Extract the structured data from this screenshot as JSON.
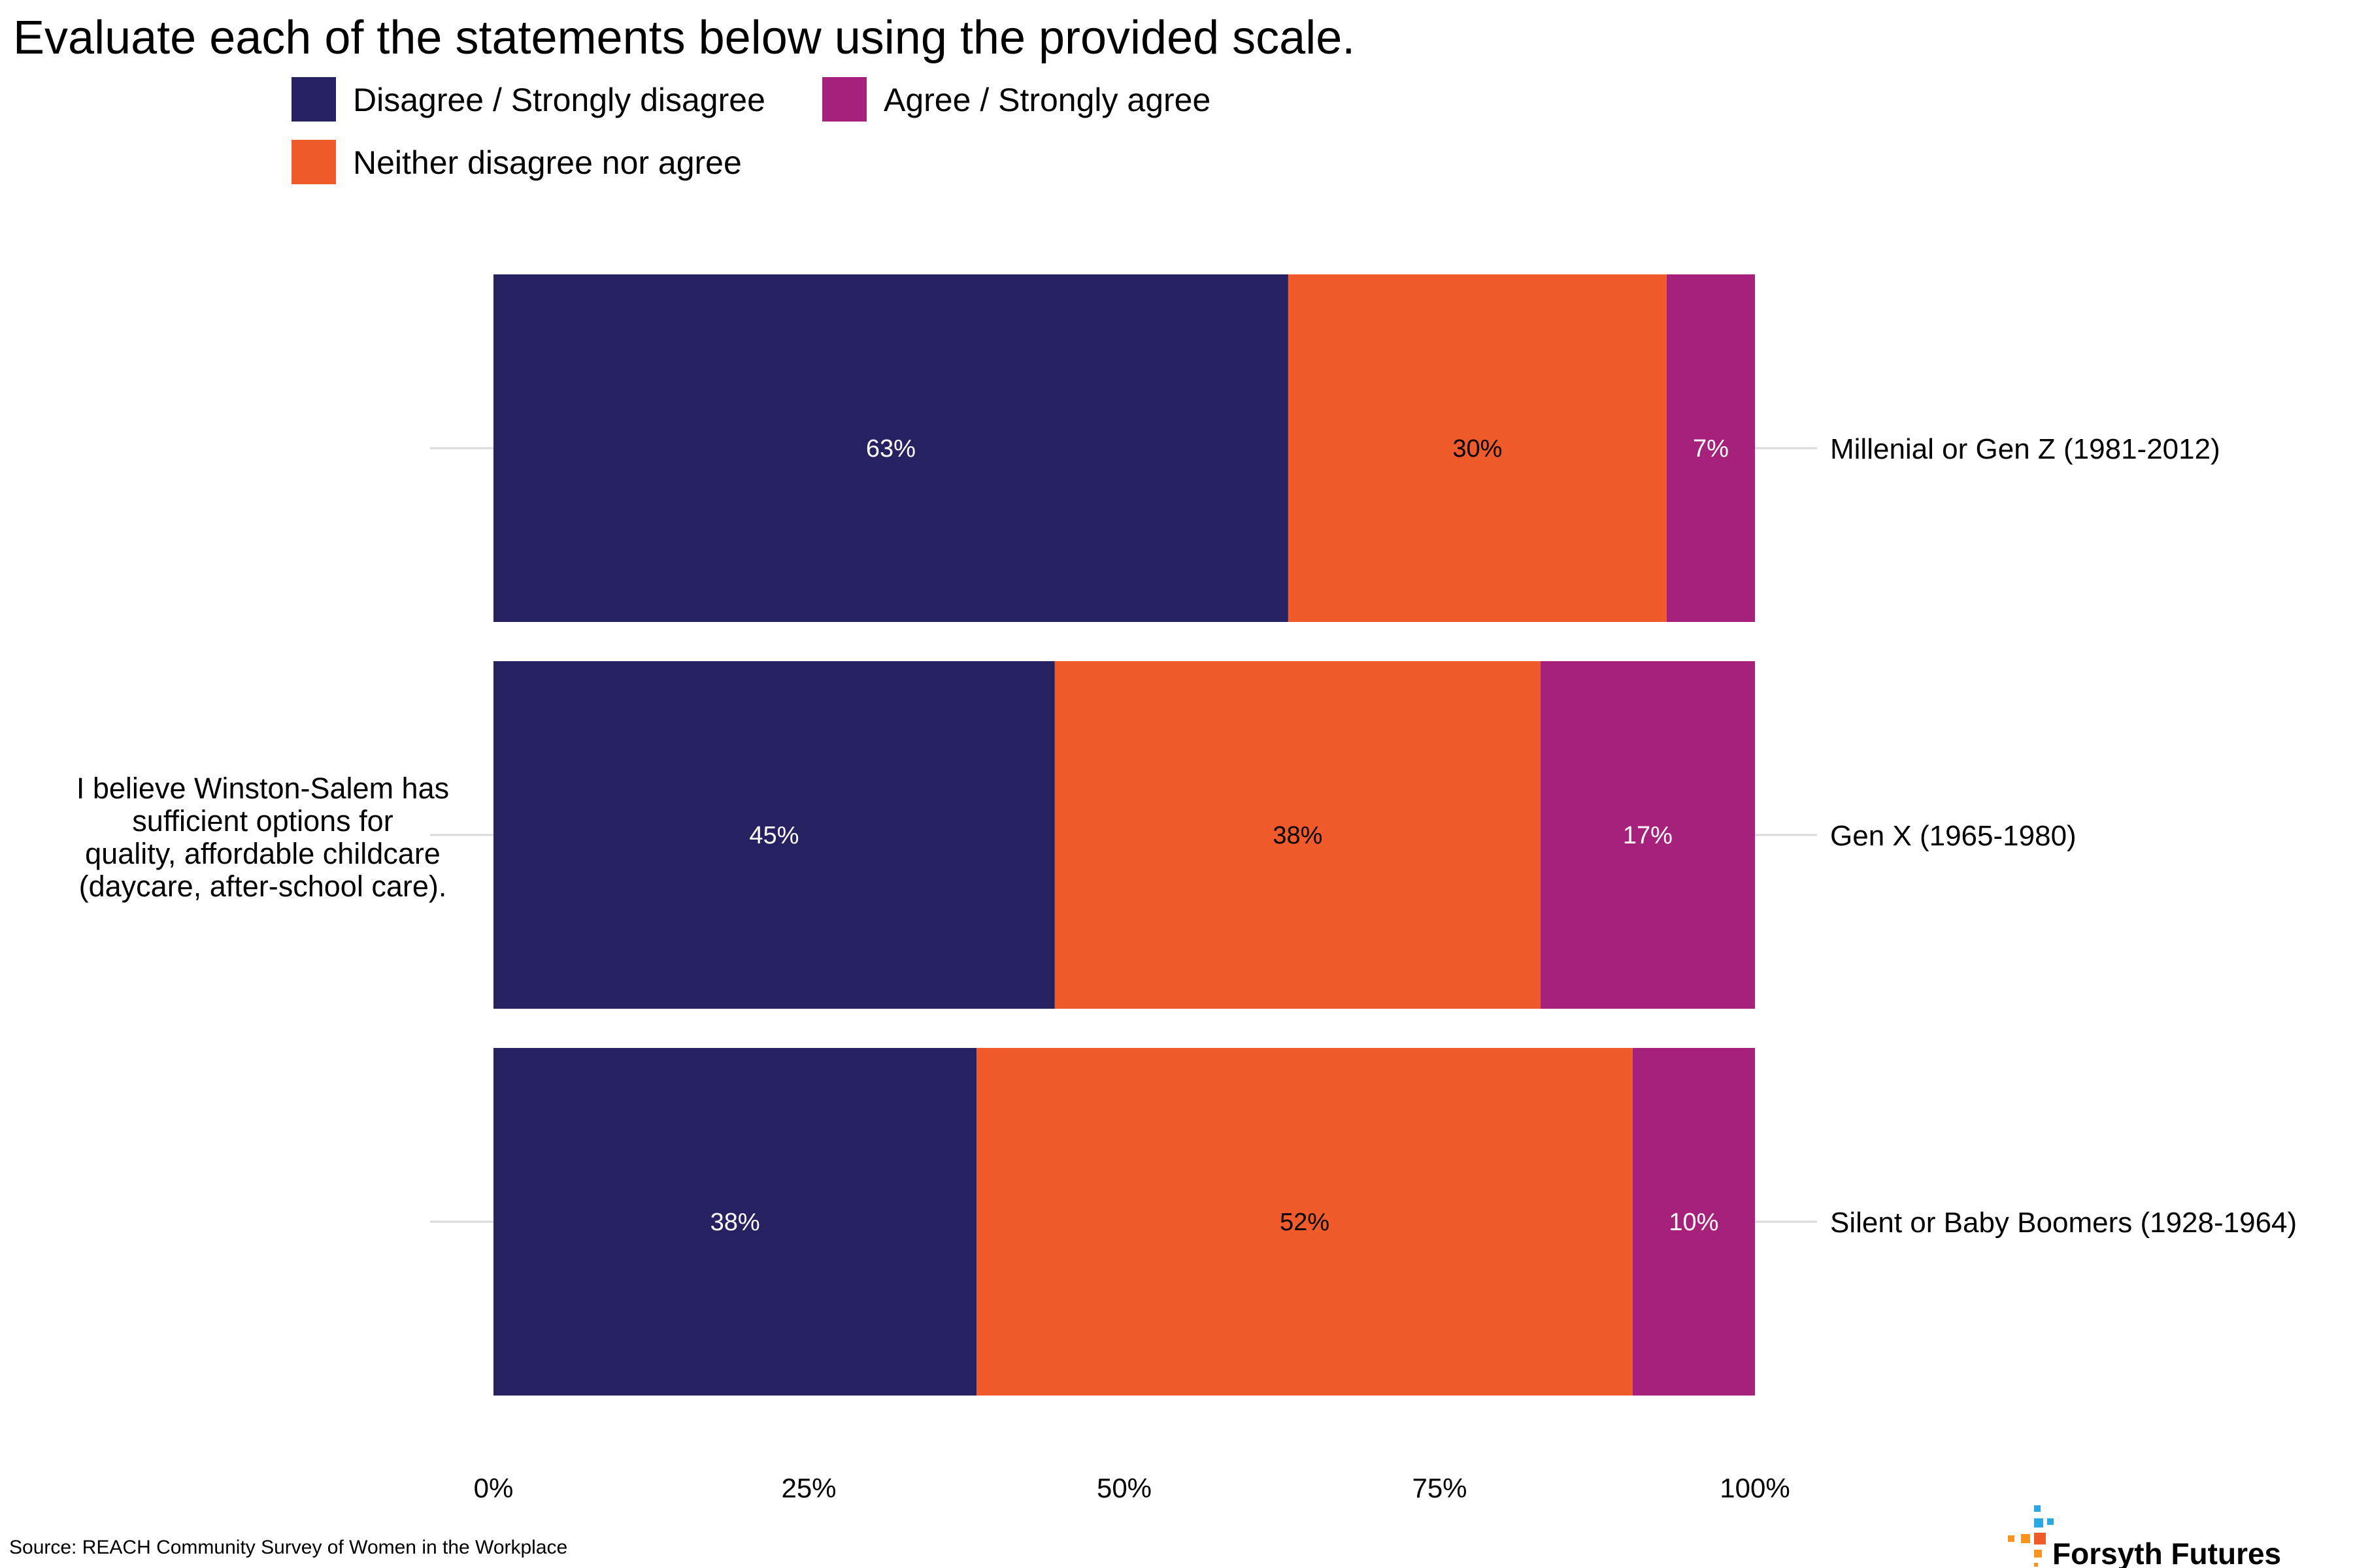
{
  "title": "Evaluate each of the statements below using the provided scale.",
  "legend": [
    {
      "label": "Disagree / Strongly disagree",
      "color": "#262262"
    },
    {
      "label": "Agree / Strongly agree",
      "color": "#A6217C"
    },
    {
      "label": "Neither disagree nor agree",
      "color": "#F15A2B"
    }
  ],
  "statement_lines": [
    "I believe Winston-Salem has",
    "sufficient options for",
    "quality, affordable childcare",
    "(daycare, after-school care)."
  ],
  "source": "Source: REACH Community Survey of Women in the Workplace",
  "brand": "Forsyth Futures",
  "chart_data": {
    "type": "bar",
    "orientation": "horizontal",
    "stacked": true,
    "categories": [
      "Millenial or Gen Z (1981-2012)",
      "Gen X (1965-1980)",
      "Silent or Baby Boomers (1928-1964)"
    ],
    "series": [
      {
        "name": "Disagree / Strongly disagree",
        "color": "#262262",
        "label_color": "#ffffff",
        "values": [
          63,
          44.5,
          38.3
        ],
        "labels": [
          "63%",
          "45%",
          "38%"
        ]
      },
      {
        "name": "Neither disagree nor agree",
        "color": "#F15A2B",
        "label_color": "#000000",
        "values": [
          30,
          38.5,
          52
        ],
        "labels": [
          "30%",
          "38%",
          "52%"
        ]
      },
      {
        "name": "Agree / Strongly agree",
        "color": "#A6217C",
        "label_color": "#ffffff",
        "values": [
          7,
          17,
          9.7
        ],
        "labels": [
          "7%",
          "17%",
          "10%"
        ]
      }
    ],
    "xlim": [
      0,
      100
    ],
    "x_ticks": [
      0,
      25,
      50,
      75,
      100
    ],
    "x_tick_labels": [
      "0%",
      "25%",
      "50%",
      "75%",
      "100%"
    ],
    "grid": false,
    "legend_position": "top"
  }
}
